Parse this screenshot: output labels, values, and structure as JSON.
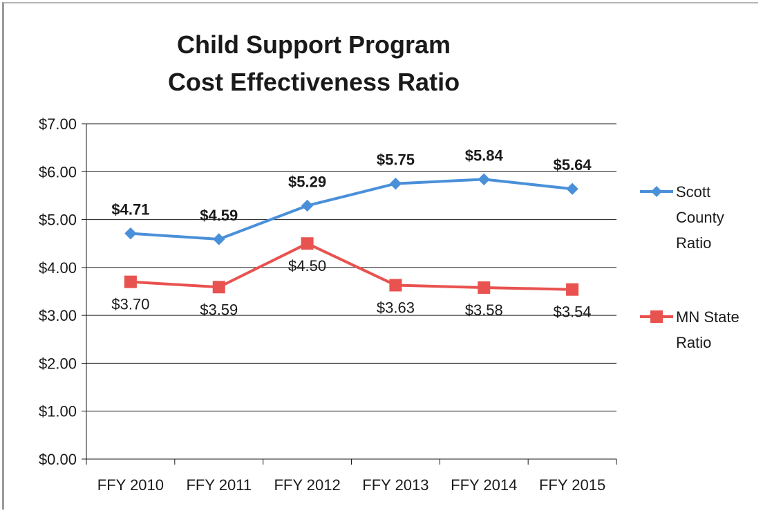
{
  "chart_data": {
    "type": "line",
    "title": [
      "Child Support Program",
      "Cost Effectiveness Ratio"
    ],
    "categories": [
      "FFY 2010",
      "FFY 2011",
      "FFY 2012",
      "FFY 2013",
      "FFY 2014",
      "FFY 2015"
    ],
    "y_ticks": [
      "$0.00",
      "$1.00",
      "$2.00",
      "$3.00",
      "$4.00",
      "$5.00",
      "$6.00",
      "$7.00"
    ],
    "ylim": [
      0,
      7
    ],
    "grid": true,
    "legend_position": "right",
    "series": [
      {
        "name": "Scott County Ratio",
        "legend_lines": [
          "Scott",
          "County",
          "Ratio"
        ],
        "values": [
          4.71,
          4.59,
          5.29,
          5.75,
          5.84,
          5.64
        ],
        "labels": [
          "$4.71",
          "$4.59",
          "$5.29",
          "$5.75",
          "$5.84",
          "$5.64"
        ],
        "color": "#4a90d9",
        "marker": "diamond"
      },
      {
        "name": "MN State Ratio",
        "legend_lines": [
          "MN State",
          "Ratio"
        ],
        "values": [
          3.7,
          3.59,
          4.5,
          3.63,
          3.58,
          3.54
        ],
        "labels": [
          "$3.70",
          "$3.59",
          "$4.50",
          "$3.63",
          "$3.58",
          "$3.54"
        ],
        "color": "#e8524f",
        "marker": "square"
      }
    ]
  }
}
